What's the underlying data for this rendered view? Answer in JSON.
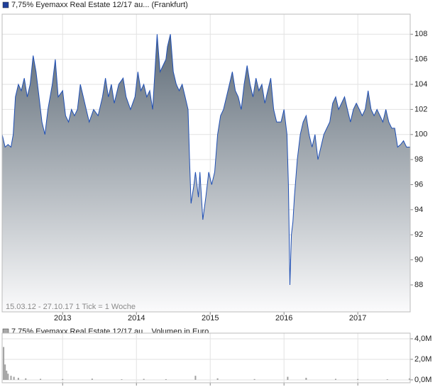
{
  "chart_data": [
    {
      "type": "area",
      "title": "7,75% Eyemaxx Real Estate 12/17 au... (Frankfurt)",
      "subtitle": "15.03.12 - 27.10.17   1 Tick = 1 Woche",
      "series": [
        {
          "name": "7,75% Eyemaxx Real Estate 12/17 au...",
          "color": "#1f4fb4",
          "x": [
            2012.18,
            2012.22,
            2012.26,
            2012.3,
            2012.33,
            2012.36,
            2012.4,
            2012.44,
            2012.48,
            2012.52,
            2012.56,
            2012.6,
            2012.64,
            2012.68,
            2012.72,
            2012.76,
            2012.8,
            2012.86,
            2012.9,
            2012.94,
            2013.0,
            2013.04,
            2013.08,
            2013.12,
            2013.16,
            2013.2,
            2013.24,
            2013.28,
            2013.32,
            2013.36,
            2013.42,
            2013.48,
            2013.54,
            2013.58,
            2013.62,
            2013.66,
            2013.7,
            2013.76,
            2013.82,
            2013.86,
            2013.92,
            2013.98,
            2014.02,
            2014.06,
            2014.1,
            2014.14,
            2014.18,
            2014.22,
            2014.26,
            2014.28,
            2014.32,
            2014.36,
            2014.4,
            2014.42,
            2014.46,
            2014.5,
            2014.54,
            2014.58,
            2014.62,
            2014.66,
            2014.7,
            2014.72,
            2014.74,
            2014.78,
            2014.8,
            2014.84,
            2014.86,
            2014.9,
            2014.94,
            2014.98,
            2015.02,
            2015.06,
            2015.1,
            2015.14,
            2015.18,
            2015.22,
            2015.26,
            2015.3,
            2015.34,
            2015.38,
            2015.42,
            2015.46,
            2015.5,
            2015.54,
            2015.58,
            2015.62,
            2015.66,
            2015.7,
            2015.74,
            2015.78,
            2015.82,
            2015.86,
            2015.9,
            2015.96,
            2016.0,
            2016.04,
            2016.06,
            2016.08,
            2016.1,
            2016.12,
            2016.14,
            2016.18,
            2016.22,
            2016.26,
            2016.3,
            2016.34,
            2016.38,
            2016.42,
            2016.46,
            2016.5,
            2016.54,
            2016.58,
            2016.62,
            2016.66,
            2016.7,
            2016.74,
            2016.78,
            2016.82,
            2016.86,
            2016.9,
            2016.94,
            2016.98,
            2017.02,
            2017.06,
            2017.1,
            2017.14,
            2017.18,
            2017.22,
            2017.26,
            2017.3,
            2017.34,
            2017.38,
            2017.42,
            2017.46,
            2017.5,
            2017.54,
            2017.58,
            2017.62,
            2017.66,
            2017.71
          ],
          "values": [
            100,
            99,
            99.2,
            99,
            100,
            103,
            104,
            103.5,
            104.5,
            103,
            104,
            106.3,
            105,
            103,
            101,
            100,
            102,
            104,
            106,
            103,
            103.5,
            101.5,
            101,
            102,
            101.5,
            102,
            104,
            103,
            102,
            101,
            102,
            101.5,
            103,
            104.5,
            103,
            104,
            102.5,
            104,
            104.5,
            103,
            102,
            103,
            105,
            103.5,
            104,
            103,
            103.5,
            102,
            106,
            108,
            105,
            105.5,
            106,
            107,
            108,
            105,
            104,
            103.5,
            104,
            103,
            102,
            98,
            94.5,
            96,
            97,
            95,
            97,
            93.2,
            95,
            97,
            96,
            97,
            100,
            101.5,
            102,
            103,
            104,
            105,
            103.5,
            103,
            102,
            104,
            105.5,
            104,
            103,
            104.5,
            103.5,
            104,
            102.5,
            103.5,
            104.5,
            102,
            101,
            101,
            102,
            100,
            96,
            88,
            92,
            93,
            95,
            98,
            100,
            101,
            101.5,
            100,
            99,
            100,
            98,
            99,
            100,
            100.5,
            101,
            102.5,
            103,
            102,
            102.5,
            103,
            102,
            101,
            102,
            102.5,
            102,
            101.5,
            102,
            103.5,
            102,
            101.5,
            102,
            101.5,
            101,
            102,
            101,
            100.5,
            100.5,
            99,
            99.2,
            99.5,
            99,
            99
          ]
        }
      ],
      "xlim": [
        2012.18,
        2017.71
      ],
      "xticks": [
        2013,
        2014,
        2015,
        2016,
        2017
      ],
      "ylim": [
        85.85,
        109.6
      ],
      "yticks": [
        88,
        90,
        92,
        94,
        96,
        98,
        100,
        102,
        104,
        106,
        108
      ],
      "grid": true
    },
    {
      "type": "bar",
      "title": "7,75% Eyemaxx Real Estate 12/17 au... Volumen in Euro",
      "color": "#a0a0a0",
      "x": [
        2012.2,
        2012.22,
        2012.24,
        2012.26,
        2012.3,
        2012.34,
        2012.4,
        2012.5,
        2012.7,
        2013.0,
        2013.4,
        2013.8,
        2014.1,
        2014.4,
        2014.8,
        2015.1,
        2015.6,
        2016.05,
        2016.3,
        2016.7,
        2017.0,
        2017.4,
        2017.7
      ],
      "values": [
        3200000,
        1500000,
        900000,
        600000,
        400000,
        300000,
        200000,
        150000,
        100000,
        80000,
        120000,
        60000,
        100000,
        70000,
        400000,
        150000,
        80000,
        300000,
        200000,
        100000,
        80000,
        60000,
        150000
      ],
      "xlim": [
        2012.18,
        2017.71
      ],
      "xticks": [
        2013,
        2014,
        2015,
        2016,
        2017
      ],
      "ylim": [
        -280000,
        4550000
      ],
      "yticks": [
        {
          "value": 0,
          "label": "0,0M"
        },
        {
          "value": 2000000,
          "label": "2,0M"
        },
        {
          "value": 4000000,
          "label": "4,0M"
        }
      ],
      "grid": true
    }
  ]
}
